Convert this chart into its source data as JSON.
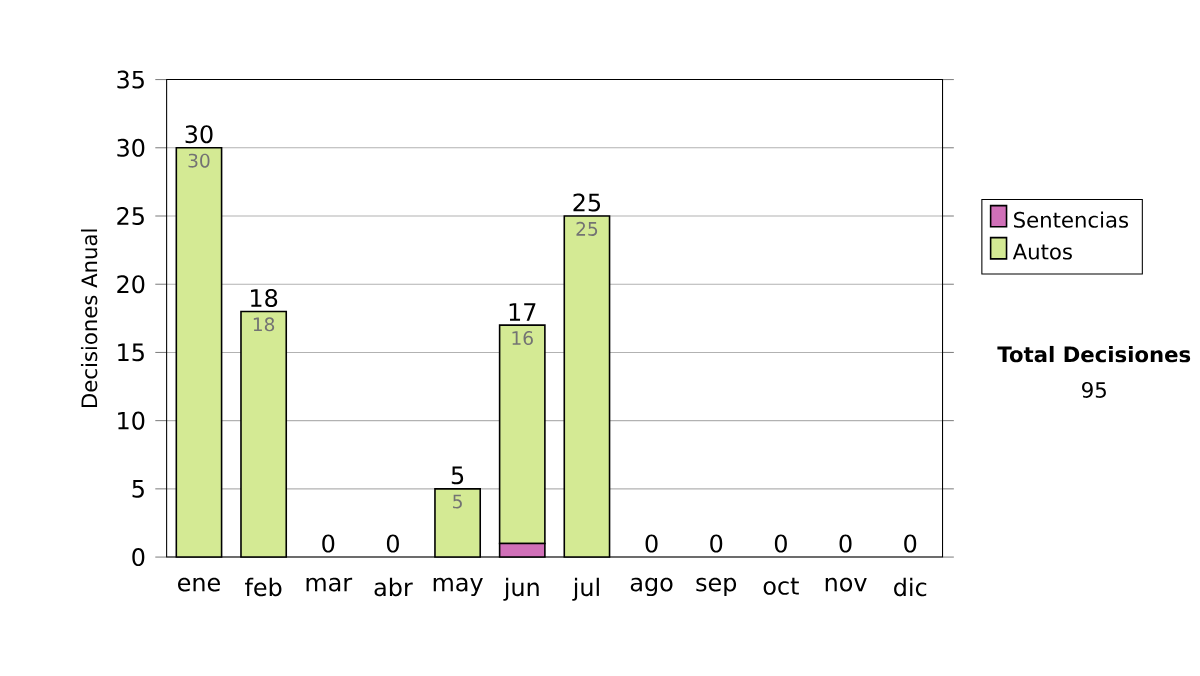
{
  "chart_data": {
    "type": "bar",
    "stacked": true,
    "ylabel": "Decisiones Anual",
    "categories": [
      "ene",
      "feb",
      "mar",
      "abr",
      "may",
      "jun",
      "jul",
      "ago",
      "sep",
      "oct",
      "nov",
      "dic"
    ],
    "series": [
      {
        "name": "Sentencias",
        "color": "#d070b8",
        "values": [
          0,
          0,
          0,
          0,
          0,
          1,
          0,
          0,
          0,
          0,
          0,
          0
        ]
      },
      {
        "name": "Autos",
        "color": "#d4ea94",
        "values": [
          30,
          18,
          0,
          0,
          5,
          16,
          25,
          0,
          0,
          0,
          0,
          0
        ],
        "value_labels": [
          "30",
          "18",
          null,
          null,
          "5",
          "16",
          "25",
          null,
          null,
          null,
          null,
          null
        ]
      }
    ],
    "totals": [
      "30",
      "18",
      "0",
      "0",
      "5",
      "17",
      "25",
      "0",
      "0",
      "0",
      "0",
      "0"
    ],
    "ylim": [
      0,
      35
    ],
    "yticks": [
      0,
      5,
      10,
      15,
      20,
      25,
      30,
      35
    ],
    "grid": "y",
    "legend": "right",
    "annotations": [
      "Total Decisiones",
      "95"
    ]
  }
}
